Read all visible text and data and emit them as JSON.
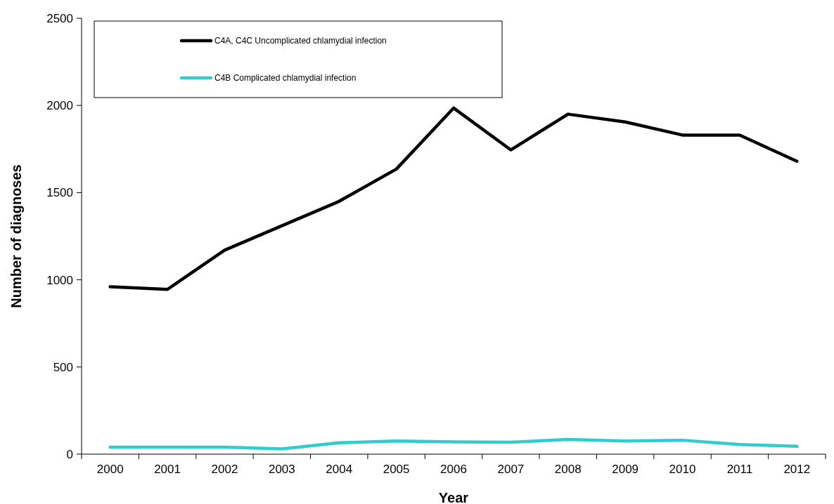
{
  "chart_data": {
    "type": "line",
    "xlabel": "Year",
    "ylabel": "Number of diagnoses",
    "categories": [
      "2000",
      "2001",
      "2002",
      "2003",
      "2004",
      "2005",
      "2006",
      "2007",
      "2008",
      "2009",
      "2010",
      "2011",
      "2012"
    ],
    "series": [
      {
        "name": "C4A, C4C Uncomplicated chlamydial infection",
        "color": "#000000",
        "values": [
          960,
          945,
          1170,
          1310,
          1450,
          1635,
          1985,
          1745,
          1950,
          1905,
          1830,
          1830,
          1680
        ]
      },
      {
        "name": "C4B Complicated chlamydial infection",
        "color": "#33cccc",
        "values": [
          40,
          40,
          40,
          30,
          65,
          75,
          70,
          68,
          85,
          75,
          80,
          55,
          45
        ]
      }
    ],
    "ylim": [
      0,
      2500
    ],
    "yticks": [
      0,
      500,
      1000,
      1500,
      2000,
      2500
    ],
    "grid": false,
    "legend": "top left",
    "marker": "none",
    "line_style": "solid"
  }
}
